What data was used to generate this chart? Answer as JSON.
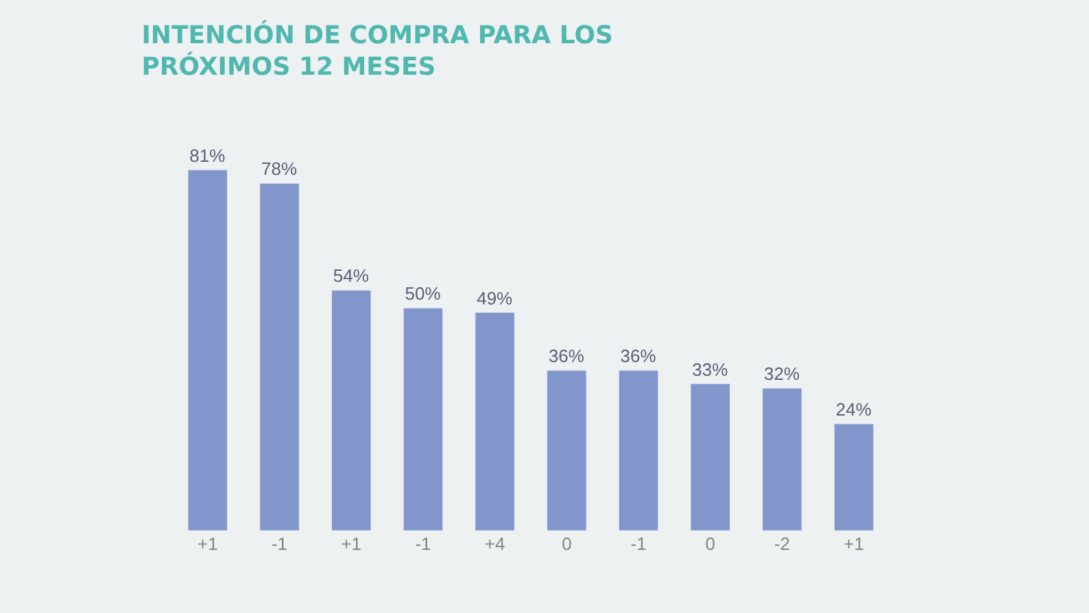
{
  "chart_data": {
    "type": "bar",
    "title": "INTENCIÓN DE COMPRA PARA LOS\nPRÓXIMOS 12 MESES",
    "categories": [
      "+1",
      "-1",
      "+1",
      "-1",
      "+4",
      "0",
      "-1",
      "0",
      "-2",
      "+1"
    ],
    "values": [
      81,
      78,
      54,
      50,
      49,
      36,
      36,
      33,
      32,
      24
    ],
    "value_labels": [
      "81%",
      "78%",
      "54%",
      "50%",
      "49%",
      "36%",
      "36%",
      "33%",
      "32%",
      "24%"
    ],
    "color": "#8296cc",
    "tick_labels": "x",
    "grid": false,
    "legend": false
  }
}
